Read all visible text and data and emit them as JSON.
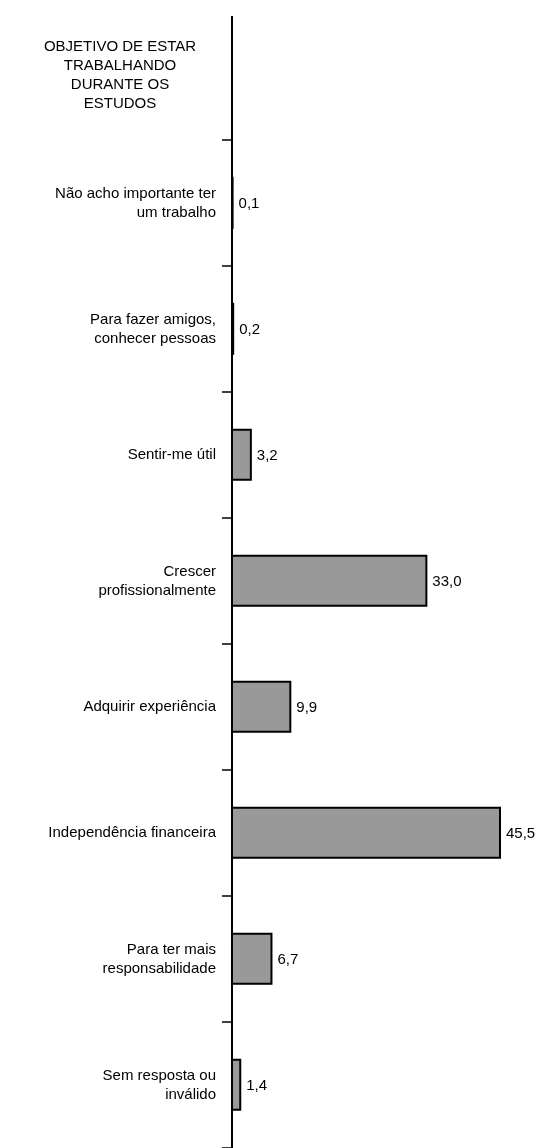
{
  "chart_data": {
    "type": "bar",
    "orientation": "horizontal",
    "title": "OBJETIVO DE ESTAR\nTRABALHANDO\nDURANTE OS\nESTUDOS",
    "categories": [
      "Não acho importante ter\num trabalho",
      "Para fazer amigos,\nconhecer pessoas",
      "Sentir-me útil",
      "Crescer\nprofissionalmente",
      "Adquirir experiência",
      "Independência financeira",
      "Para ter mais\nresponsabilidade",
      "Sem resposta ou\ninválido"
    ],
    "values": [
      0.1,
      0.2,
      3.2,
      33.0,
      9.9,
      45.5,
      6.7,
      1.4
    ],
    "value_labels": [
      "0,1",
      "0,2",
      "3,2",
      "33,0",
      "9,9",
      "45,5",
      "6,7",
      "1,4"
    ],
    "color": "#999999",
    "grid": false,
    "legend": false
  }
}
